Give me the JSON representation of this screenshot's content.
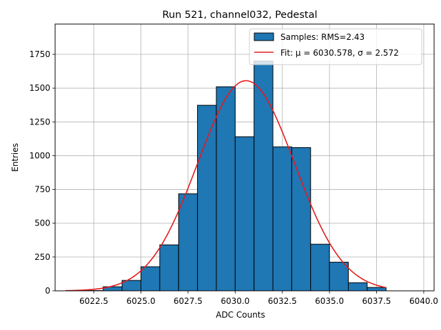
{
  "chart_data": {
    "type": "bar",
    "title": "Run 521, channel032, Pedestal",
    "xlabel": "ADC Counts",
    "ylabel": "Entries",
    "xlim": [
      6020.45,
      6040.55
    ],
    "ylim": [
      0,
      1974
    ],
    "x_ticks": [
      6022.5,
      6025.0,
      6027.5,
      6030.0,
      6032.5,
      6035.0,
      6037.5,
      6040.0
    ],
    "x_tick_labels": [
      "6022.5",
      "6025.0",
      "6027.5",
      "6030.0",
      "6032.5",
      "6035.0",
      "6037.5",
      "6040.0"
    ],
    "y_ticks": [
      0,
      250,
      500,
      750,
      1000,
      1250,
      1500,
      1750
    ],
    "y_tick_labels": [
      "0",
      "250",
      "500",
      "750",
      "1000",
      "1250",
      "1500",
      "1750"
    ],
    "grid": true,
    "legend_position": "top-right",
    "bin_edges": [
      6022,
      6023,
      6024,
      6025,
      6026,
      6027,
      6028,
      6029,
      6030,
      6031,
      6032,
      6033,
      6034,
      6035,
      6036,
      6037,
      6038
    ],
    "bar_color": "#1f77b4",
    "series": [
      {
        "name": "Samples: RMS=2.43",
        "type": "histogram",
        "color": "#1f77b4",
        "values": [
          2,
          30,
          77,
          178,
          340,
          718,
          1373,
          1510,
          1140,
          1700,
          1065,
          1060,
          345,
          212,
          60,
          25
        ]
      },
      {
        "name": "Fit: μ = 6030.578, σ = 2.572",
        "type": "line",
        "color": "#e41a1c",
        "mu": 6030.578,
        "sigma": 2.572,
        "amplitude": 1555,
        "x_range": [
          6021,
          6038
        ]
      }
    ]
  }
}
